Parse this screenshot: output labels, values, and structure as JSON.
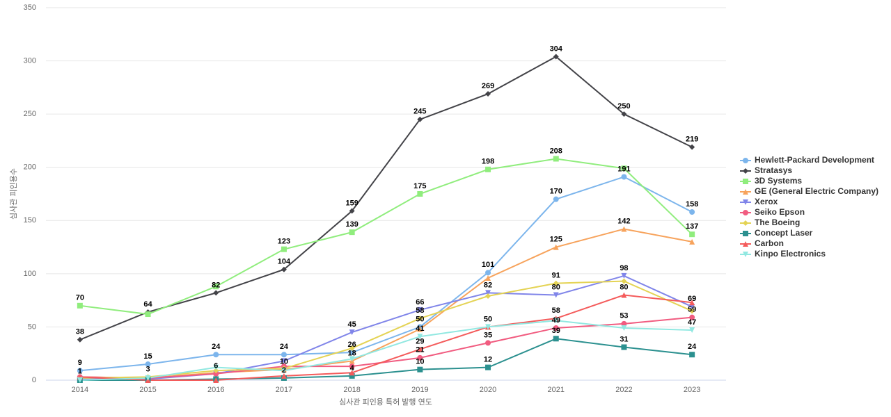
{
  "chart_data": {
    "type": "line",
    "x_label": "심사관 피인용 특허 발행 연도",
    "y_label": "심사관 피인용수",
    "categories": [
      "2014",
      "2015",
      "2016",
      "2017",
      "2018",
      "2019",
      "2020",
      "2021",
      "2022",
      "2023"
    ],
    "ylim": [
      0,
      350
    ],
    "yticks": [
      0,
      50,
      100,
      150,
      200,
      250,
      300,
      350
    ],
    "grid": true,
    "legend": "right",
    "series": [
      {
        "name": "Hewlett-Packard Development",
        "color": "#7cb5ec",
        "marker": "circle",
        "values": [
          9,
          15,
          24,
          24,
          26,
          50,
          101,
          170,
          191,
          158
        ],
        "value_labels": [
          "9",
          "15",
          "24",
          "24",
          "26",
          "50",
          "101",
          "170",
          "191",
          "158"
        ]
      },
      {
        "name": "Stratasys",
        "color": "#434348",
        "marker": "diamond",
        "values": [
          38,
          64,
          82,
          104,
          159,
          245,
          269,
          304,
          250,
          219
        ],
        "value_labels": [
          "38",
          "64",
          "82",
          "104",
          "159",
          "245",
          "269",
          "304",
          "250",
          "219"
        ]
      },
      {
        "name": "3D Systems",
        "color": "#90ed7d",
        "marker": "square",
        "values": [
          70,
          62,
          88,
          123,
          139,
          175,
          198,
          208,
          199,
          137
        ],
        "value_labels": [
          "70",
          null,
          null,
          "123",
          "139",
          "175",
          "198",
          "208",
          null,
          "137"
        ]
      },
      {
        "name": "GE (General Electric Company)",
        "color": "#f7a35c",
        "marker": "triangle",
        "values": [
          3,
          2,
          7,
          10,
          18,
          48,
          96,
          125,
          142,
          130
        ],
        "value_labels": [
          null,
          null,
          null,
          "10",
          "18",
          null,
          null,
          "125",
          "142",
          null
        ]
      },
      {
        "name": "Xerox",
        "color": "#8085e9",
        "marker": "triangle-down",
        "values": [
          1,
          1,
          6,
          18,
          45,
          66,
          82,
          80,
          98,
          69
        ],
        "value_labels": [
          "1",
          null,
          "6",
          null,
          "45",
          "66",
          "82",
          "80",
          "98",
          "69"
        ]
      },
      {
        "name": "Seiko Epson",
        "color": "#f15c80",
        "marker": "circle",
        "values": [
          3,
          2,
          6,
          13,
          13,
          21,
          35,
          49,
          53,
          59
        ],
        "value_labels": [
          null,
          null,
          null,
          null,
          null,
          "21",
          "35",
          "49",
          "53",
          "59"
        ]
      },
      {
        "name": "The Boeing",
        "color": "#e4d354",
        "marker": "diamond",
        "values": [
          2,
          3,
          9,
          11,
          30,
          58,
          79,
          91,
          93,
          65
        ],
        "value_labels": [
          null,
          "3",
          null,
          null,
          null,
          "58",
          null,
          "91",
          null,
          null
        ]
      },
      {
        "name": "Concept Laser",
        "color": "#2b908f",
        "marker": "square",
        "values": [
          0,
          0,
          1,
          2,
          4,
          10,
          12,
          39,
          31,
          24
        ],
        "value_labels": [
          null,
          null,
          null,
          "2",
          "4",
          "10",
          "12",
          "39",
          "31",
          "24"
        ]
      },
      {
        "name": "Carbon",
        "color": "#f45b5b",
        "marker": "triangle",
        "values": [
          3,
          0,
          0,
          4,
          7,
          29,
          50,
          58,
          80,
          73
        ],
        "value_labels": [
          null,
          null,
          null,
          null,
          null,
          "29",
          "50",
          "58",
          "80",
          null
        ]
      },
      {
        "name": "Kinpo Electronics",
        "color": "#91e8e1",
        "marker": "triangle-down",
        "values": [
          0,
          2,
          12,
          9,
          20,
          41,
          50,
          56,
          49,
          47
        ],
        "value_labels": [
          null,
          null,
          null,
          null,
          null,
          "41",
          null,
          null,
          null,
          "47"
        ]
      }
    ]
  }
}
